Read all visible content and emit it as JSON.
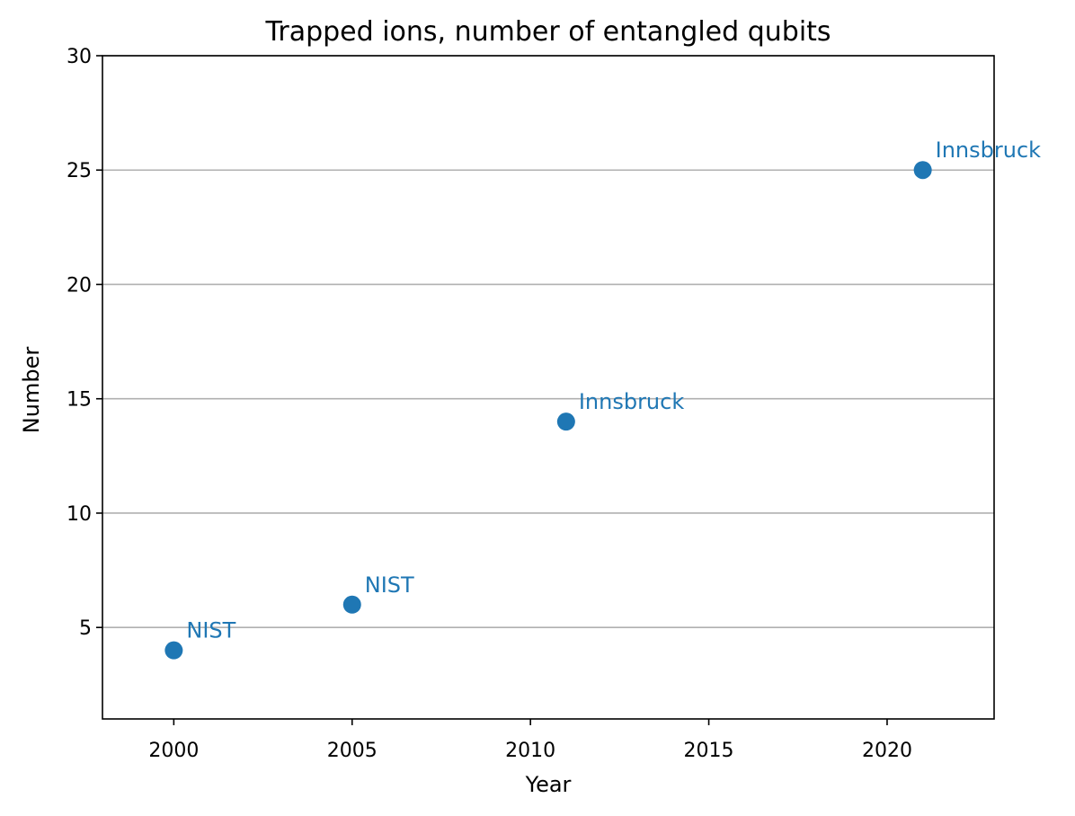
{
  "chart_data": {
    "type": "scatter",
    "title": "Trapped ions, number of entangled qubits",
    "xlabel": "Year",
    "ylabel": "Number",
    "xlim": [
      1998,
      2023
    ],
    "ylim": [
      1,
      30
    ],
    "xticks": [
      2000,
      2005,
      2010,
      2015,
      2020
    ],
    "yticks": [
      5,
      10,
      15,
      20,
      25,
      30
    ],
    "grid": "y",
    "series": [
      {
        "color": "#1f77b4",
        "points": [
          {
            "x": 2000,
            "y": 4,
            "label": "NIST"
          },
          {
            "x": 2005,
            "y": 6,
            "label": "NIST"
          },
          {
            "x": 2011,
            "y": 14,
            "label": "Innsbruck"
          },
          {
            "x": 2021,
            "y": 25,
            "label": "Innsbruck"
          }
        ]
      }
    ]
  }
}
